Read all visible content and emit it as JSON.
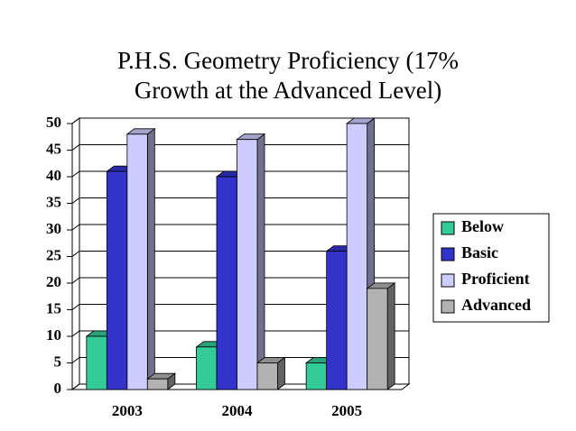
{
  "chart_data": {
    "type": "bar3d",
    "title": [
      "P.H.S. Geometry Proficiency (17%",
      "Growth at the Advanced Level)"
    ],
    "categories": [
      "2003",
      "2004",
      "2005"
    ],
    "series": [
      {
        "name": "Below",
        "color": "#33cc99",
        "values": [
          10,
          8,
          5
        ]
      },
      {
        "name": "Basic",
        "color": "#3333cc",
        "values": [
          41,
          40,
          26
        ]
      },
      {
        "name": "Proficient",
        "color": "#ccccff",
        "values": [
          48,
          47,
          50
        ]
      },
      {
        "name": "Advanced",
        "color": "#b2b2b2",
        "values": [
          2,
          5,
          19
        ]
      }
    ],
    "ylim": [
      0,
      50
    ],
    "yticks": [
      0,
      5,
      10,
      15,
      20,
      25,
      30,
      35,
      40,
      45,
      50
    ],
    "grid": true,
    "legend": "right"
  }
}
